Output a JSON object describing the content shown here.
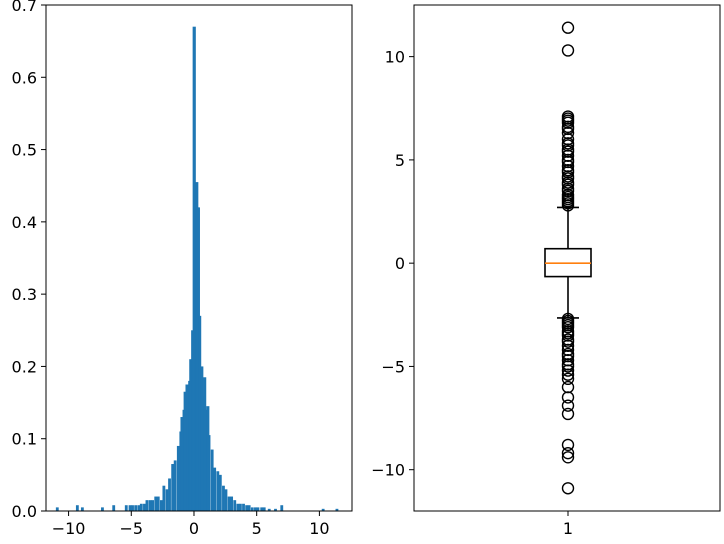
{
  "chart_data": [
    {
      "type": "bar",
      "subtype": "histogram",
      "color": "#1f77b4",
      "xlim": [
        -11.8,
        12.6
      ],
      "ylim": [
        0,
        0.7
      ],
      "xticks": [
        -10,
        -5,
        0,
        5,
        10
      ],
      "xtick_labels": [
        "−10",
        "−5",
        "0",
        "5",
        "10"
      ],
      "yticks": [
        0.0,
        0.1,
        0.2,
        0.3,
        0.4,
        0.5,
        0.6,
        0.7
      ],
      "ytick_labels": [
        "0.0",
        "0.1",
        "0.2",
        "0.3",
        "0.4",
        "0.5",
        "0.6",
        "0.7"
      ],
      "bin_width": 0.225,
      "bins": [
        {
          "x": -10.9,
          "y": 0.005
        },
        {
          "x": -9.3,
          "y": 0.008
        },
        {
          "x": -8.9,
          "y": 0.005
        },
        {
          "x": -7.3,
          "y": 0.005
        },
        {
          "x": -6.4,
          "y": 0.008
        },
        {
          "x": -5.4,
          "y": 0.008
        },
        {
          "x": -5.1,
          "y": 0.008
        },
        {
          "x": -4.9,
          "y": 0.008
        },
        {
          "x": -4.65,
          "y": 0.008
        },
        {
          "x": -4.4,
          "y": 0.008
        },
        {
          "x": -4.2,
          "y": 0.01
        },
        {
          "x": -3.95,
          "y": 0.01
        },
        {
          "x": -3.75,
          "y": 0.015
        },
        {
          "x": -3.5,
          "y": 0.015
        },
        {
          "x": -3.3,
          "y": 0.015
        },
        {
          "x": -3.05,
          "y": 0.02
        },
        {
          "x": -2.85,
          "y": 0.02
        },
        {
          "x": -2.6,
          "y": 0.015
        },
        {
          "x": -2.4,
          "y": 0.035
        },
        {
          "x": -2.15,
          "y": 0.03
        },
        {
          "x": -1.95,
          "y": 0.045
        },
        {
          "x": -1.7,
          "y": 0.065
        },
        {
          "x": -1.5,
          "y": 0.07
        },
        {
          "x": -1.25,
          "y": 0.09
        },
        {
          "x": -1.05,
          "y": 0.11
        },
        {
          "x": -0.8,
          "y": 0.14
        },
        {
          "x": -0.6,
          "y": 0.16
        },
        {
          "x": -0.35,
          "y": 0.18
        },
        {
          "x": -0.15,
          "y": 0.2
        },
        {
          "x": 0.1,
          "y": 0.4
        },
        {
          "x": 0.3,
          "y": 0.42
        },
        {
          "x": 0.55,
          "y": 0.185
        },
        {
          "x": 0.75,
          "y": 0.16
        },
        {
          "x": 1.0,
          "y": 0.14
        },
        {
          "x": 1.2,
          "y": 0.105
        },
        {
          "x": 1.45,
          "y": 0.085
        },
        {
          "x": 1.65,
          "y": 0.06
        },
        {
          "x": 1.9,
          "y": 0.055
        },
        {
          "x": 2.1,
          "y": 0.05
        },
        {
          "x": 2.35,
          "y": 0.035
        },
        {
          "x": 2.55,
          "y": 0.03
        },
        {
          "x": 2.8,
          "y": 0.02
        },
        {
          "x": 3.0,
          "y": 0.02
        },
        {
          "x": 3.25,
          "y": 0.015
        },
        {
          "x": 3.5,
          "y": 0.01
        },
        {
          "x": 3.7,
          "y": 0.01
        },
        {
          "x": 3.95,
          "y": 0.01
        },
        {
          "x": 4.2,
          "y": 0.008
        },
        {
          "x": 4.4,
          "y": 0.008
        },
        {
          "x": 4.65,
          "y": 0.005
        },
        {
          "x": 4.9,
          "y": 0.005
        },
        {
          "x": 5.1,
          "y": 0.005
        },
        {
          "x": 5.4,
          "y": 0.005
        },
        {
          "x": 5.6,
          "y": 0.005
        },
        {
          "x": 6.0,
          "y": 0.003
        },
        {
          "x": 6.5,
          "y": 0.003
        },
        {
          "x": 7.0,
          "y": 0.008
        },
        {
          "x": 10.3,
          "y": 0.003
        },
        {
          "x": 11.4,
          "y": 0.003
        }
      ],
      "spikes": [
        {
          "x": -0.4,
          "y": 0.155
        },
        {
          "x": -0.25,
          "y": 0.21
        },
        {
          "x": -0.1,
          "y": 0.25
        },
        {
          "x": 0.02,
          "y": 0.67
        },
        {
          "x": 0.15,
          "y": 0.4
        },
        {
          "x": 0.22,
          "y": 0.455
        },
        {
          "x": 0.35,
          "y": 0.42
        },
        {
          "x": 0.45,
          "y": 0.27
        },
        {
          "x": 0.62,
          "y": 0.2
        },
        {
          "x": 0.85,
          "y": 0.185
        },
        {
          "x": -0.55,
          "y": 0.175
        },
        {
          "x": -0.7,
          "y": 0.165
        },
        {
          "x": -0.95,
          "y": 0.13
        },
        {
          "x": 1.1,
          "y": 0.145
        }
      ]
    },
    {
      "type": "box",
      "category": "1",
      "xtick_labels": [
        "1"
      ],
      "ylim": [
        -12.0,
        12.5
      ],
      "yticks": [
        -10,
        -5,
        0,
        5,
        10
      ],
      "ytick_labels": [
        "−10",
        "−5",
        "0",
        "5",
        "10"
      ],
      "median": 0.0,
      "q1": -0.65,
      "q3": 0.7,
      "whisker_low": -2.65,
      "whisker_high": 2.7,
      "median_color": "#ff7f0e",
      "fliers": [
        11.4,
        10.3,
        7.1,
        7.0,
        6.9,
        6.8,
        6.6,
        6.5,
        6.3,
        6.0,
        5.8,
        5.7,
        5.5,
        5.4,
        5.2,
        5.0,
        4.9,
        4.7,
        4.5,
        4.4,
        4.2,
        4.1,
        3.9,
        3.8,
        3.6,
        3.5,
        3.3,
        3.2,
        3.1,
        3.0,
        2.9,
        2.8,
        -2.7,
        -2.8,
        -2.9,
        -3.0,
        -3.1,
        -3.3,
        -3.4,
        -3.5,
        -3.7,
        -3.8,
        -4.0,
        -4.2,
        -4.4,
        -4.5,
        -4.7,
        -4.9,
        -5.0,
        -5.2,
        -5.4,
        -5.6,
        -6.0,
        -6.5,
        -6.9,
        -7.3,
        -8.8,
        -9.2,
        -9.4,
        -10.9
      ]
    }
  ]
}
